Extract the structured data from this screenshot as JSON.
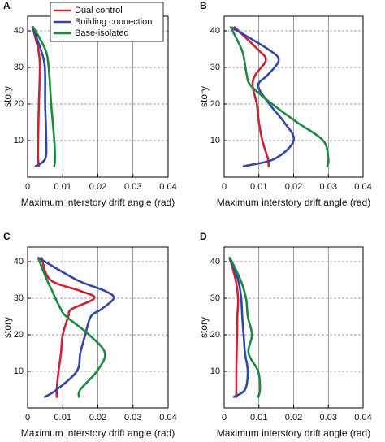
{
  "chart_data": [
    {
      "type": "line",
      "panel_label": "A",
      "xlabel": "Maximum interstory drift angle (rad)",
      "ylabel": "story",
      "xlim": [
        0,
        0.04
      ],
      "xticks": [
        0,
        0.01,
        0.02,
        0.03,
        0.04
      ],
      "ylim": [
        0,
        44
      ],
      "yticks": [
        10,
        20,
        30,
        40
      ],
      "grid": true,
      "legend": "upper right",
      "y": [
        3,
        5,
        10,
        20,
        30,
        35,
        41
      ],
      "series": [
        {
          "name": "Dual control",
          "color": "#cc2233",
          "values": [
            0.0032,
            0.003,
            0.003,
            0.0032,
            0.0035,
            0.003,
            0.0014
          ]
        },
        {
          "name": "Building connection",
          "color": "#3344aa",
          "values": [
            0.0023,
            0.005,
            0.0053,
            0.005,
            0.0049,
            0.0037,
            0.0014
          ]
        },
        {
          "name": "Base-isolated",
          "color": "#1a8a3e",
          "values": [
            0.0076,
            0.0078,
            0.0076,
            0.0067,
            0.006,
            0.005,
            0.0016
          ]
        }
      ]
    },
    {
      "type": "line",
      "panel_label": "B",
      "xlabel": "Maximum interstory drift angle (rad)",
      "ylabel": "story",
      "xlim": [
        0,
        0.04
      ],
      "xticks": [
        0,
        0.01,
        0.02,
        0.03,
        0.04
      ],
      "ylim": [
        0,
        44
      ],
      "yticks": [
        10,
        20,
        30,
        40
      ],
      "grid": true,
      "y": [
        3,
        5,
        10,
        15,
        20,
        25,
        28,
        32,
        35,
        41
      ],
      "series": [
        {
          "color": "#cc2233",
          "values": [
            0.0128,
            0.0126,
            0.011,
            0.01,
            0.0094,
            0.0082,
            0.009,
            0.012,
            0.0096,
            0.003
          ]
        },
        {
          "color": "#3344aa",
          "values": [
            0.0056,
            0.0145,
            0.02,
            0.0173,
            0.013,
            0.0098,
            0.0126,
            0.0157,
            0.0126,
            0.002
          ]
        },
        {
          "color": "#1a8a3e",
          "values": [
            0.0297,
            0.03,
            0.0285,
            0.021,
            0.0138,
            0.0077,
            0.0065,
            0.0058,
            0.005,
            0.0019
          ]
        }
      ]
    },
    {
      "type": "line",
      "panel_label": "C",
      "xlabel": "Maximum interstory drift angle (rad)",
      "ylabel": "story",
      "xlim": [
        0,
        0.04
      ],
      "xticks": [
        0,
        0.01,
        0.02,
        0.03,
        0.04
      ],
      "ylim": [
        0,
        44
      ],
      "yticks": [
        10,
        20,
        30,
        40
      ],
      "grid": true,
      "y": [
        3,
        5,
        10,
        15,
        20,
        25,
        27,
        30,
        32,
        35,
        41
      ],
      "series": [
        {
          "color": "#cc2233",
          "values": [
            0.0083,
            0.0083,
            0.0088,
            0.0095,
            0.01,
            0.0116,
            0.0125,
            0.019,
            0.015,
            0.0065,
            0.004
          ]
        },
        {
          "color": "#3344aa",
          "values": [
            0.0049,
            0.0083,
            0.014,
            0.015,
            0.0164,
            0.018,
            0.021,
            0.0245,
            0.022,
            0.014,
            0.0032
          ]
        },
        {
          "color": "#1a8a3e",
          "values": [
            0.0146,
            0.015,
            0.0197,
            0.022,
            0.0175,
            0.011,
            0.0095,
            0.0079,
            0.007,
            0.0055,
            0.003
          ]
        }
      ]
    },
    {
      "type": "line",
      "panel_label": "D",
      "xlabel": "Maximum interstory drift angle (rad)",
      "ylabel": "story",
      "xlim": [
        0,
        0.04
      ],
      "xticks": [
        0,
        0.01,
        0.02,
        0.03,
        0.04
      ],
      "ylim": [
        0,
        44
      ],
      "yticks": [
        10,
        20,
        30,
        40
      ],
      "grid": true,
      "y": [
        3,
        5,
        10,
        15,
        20,
        25,
        30,
        35,
        41
      ],
      "series": [
        {
          "color": "#cc2233",
          "values": [
            0.0035,
            0.0035,
            0.0035,
            0.0036,
            0.0037,
            0.0038,
            0.004,
            0.0033,
            0.0016
          ]
        },
        {
          "color": "#3344aa",
          "values": [
            0.0028,
            0.006,
            0.0068,
            0.006,
            0.0056,
            0.0052,
            0.0049,
            0.004,
            0.0016
          ]
        },
        {
          "color": "#1a8a3e",
          "values": [
            0.0098,
            0.0103,
            0.0098,
            0.007,
            0.008,
            0.0068,
            0.0063,
            0.0047,
            0.0017
          ]
        }
      ]
    }
  ]
}
